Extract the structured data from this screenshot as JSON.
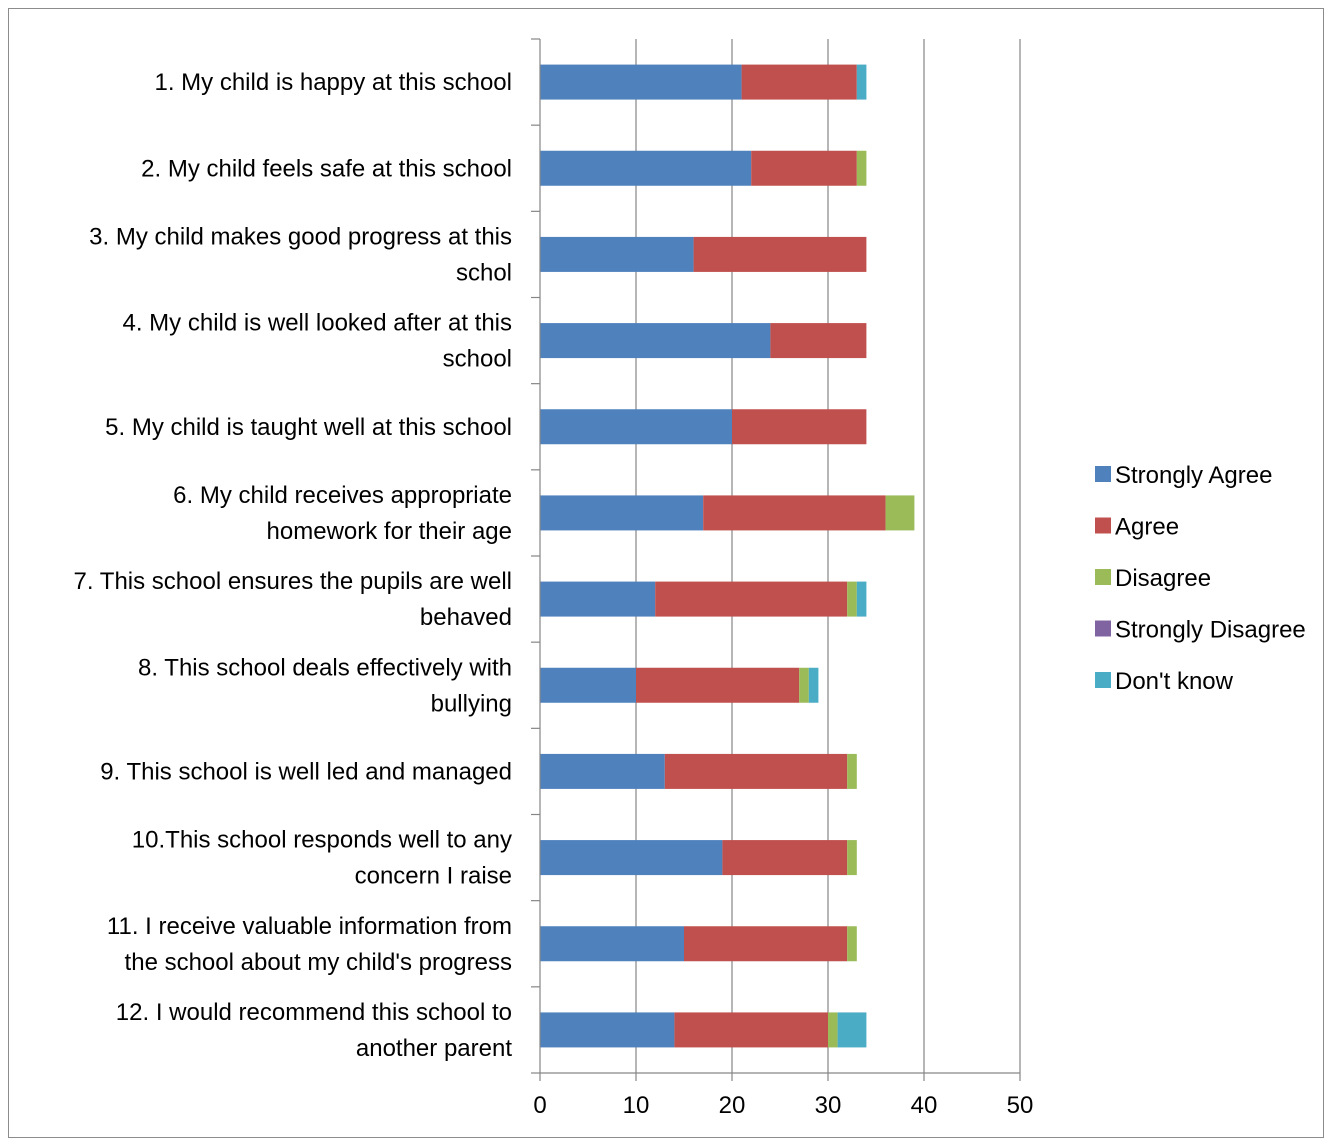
{
  "chart_data": {
    "type": "bar",
    "orientation": "horizontal",
    "stacked": true,
    "categories": [
      "1. My child is happy at this school",
      "2. My child feels safe at this school",
      "3. My child makes good progress at this schol",
      "4. My child is well looked after at this school",
      "5. My child is taught well at this school",
      "6. My child receives appropriate homework for their age",
      "7. This school ensures the pupils are well behaved",
      "8. This school deals effectively with bullying",
      "9. This school is well led and managed",
      "10.This school responds well to any concern I raise",
      "11. I receive valuable information from the school about my child's progress",
      "12. I would recommend this school to another parent"
    ],
    "category_lines": [
      [
        "1. My child is happy at this school"
      ],
      [
        "2. My child feels safe at this school"
      ],
      [
        "3. My child makes good progress at this",
        "schol"
      ],
      [
        "4. My child is well looked after at this",
        "school"
      ],
      [
        "5. My child is taught well at this school"
      ],
      [
        "6. My child receives appropriate",
        "homework for their age"
      ],
      [
        "7. This school ensures the pupils are well",
        "behaved"
      ],
      [
        "8. This school deals effectively with",
        "bullying"
      ],
      [
        "9. This school is well led and managed"
      ],
      [
        "10.This school responds well to any",
        "concern I raise"
      ],
      [
        "11. I receive valuable information from",
        "the school about my child's progress"
      ],
      [
        "12. I would recommend this school to",
        "another parent"
      ]
    ],
    "series": [
      {
        "name": "Strongly Agree",
        "color": "#4f81bd",
        "values": [
          21,
          22,
          16,
          24,
          20,
          17,
          12,
          10,
          13,
          19,
          15,
          14
        ]
      },
      {
        "name": "Agree",
        "color": "#c0504d",
        "values": [
          12,
          11,
          18,
          10,
          14,
          19,
          20,
          17,
          19,
          13,
          17,
          16
        ]
      },
      {
        "name": "Disagree",
        "color": "#9bbb59",
        "values": [
          0,
          1,
          0,
          0,
          0,
          3,
          1,
          1,
          1,
          1,
          1,
          1
        ]
      },
      {
        "name": "Strongly Disagree",
        "color": "#8064a2",
        "values": [
          0,
          0,
          0,
          0,
          0,
          0,
          0,
          0,
          0,
          0,
          0,
          0
        ]
      },
      {
        "name": "Don't know",
        "color": "#4bacc6",
        "values": [
          1,
          0,
          0,
          0,
          0,
          0,
          1,
          1,
          0,
          0,
          0,
          3
        ]
      }
    ],
    "xlim": [
      0,
      50
    ],
    "xticks": [
      0,
      10,
      20,
      30,
      40,
      50
    ],
    "grid": true,
    "legend_position": "right",
    "title": "",
    "xlabel": "",
    "ylabel": ""
  }
}
